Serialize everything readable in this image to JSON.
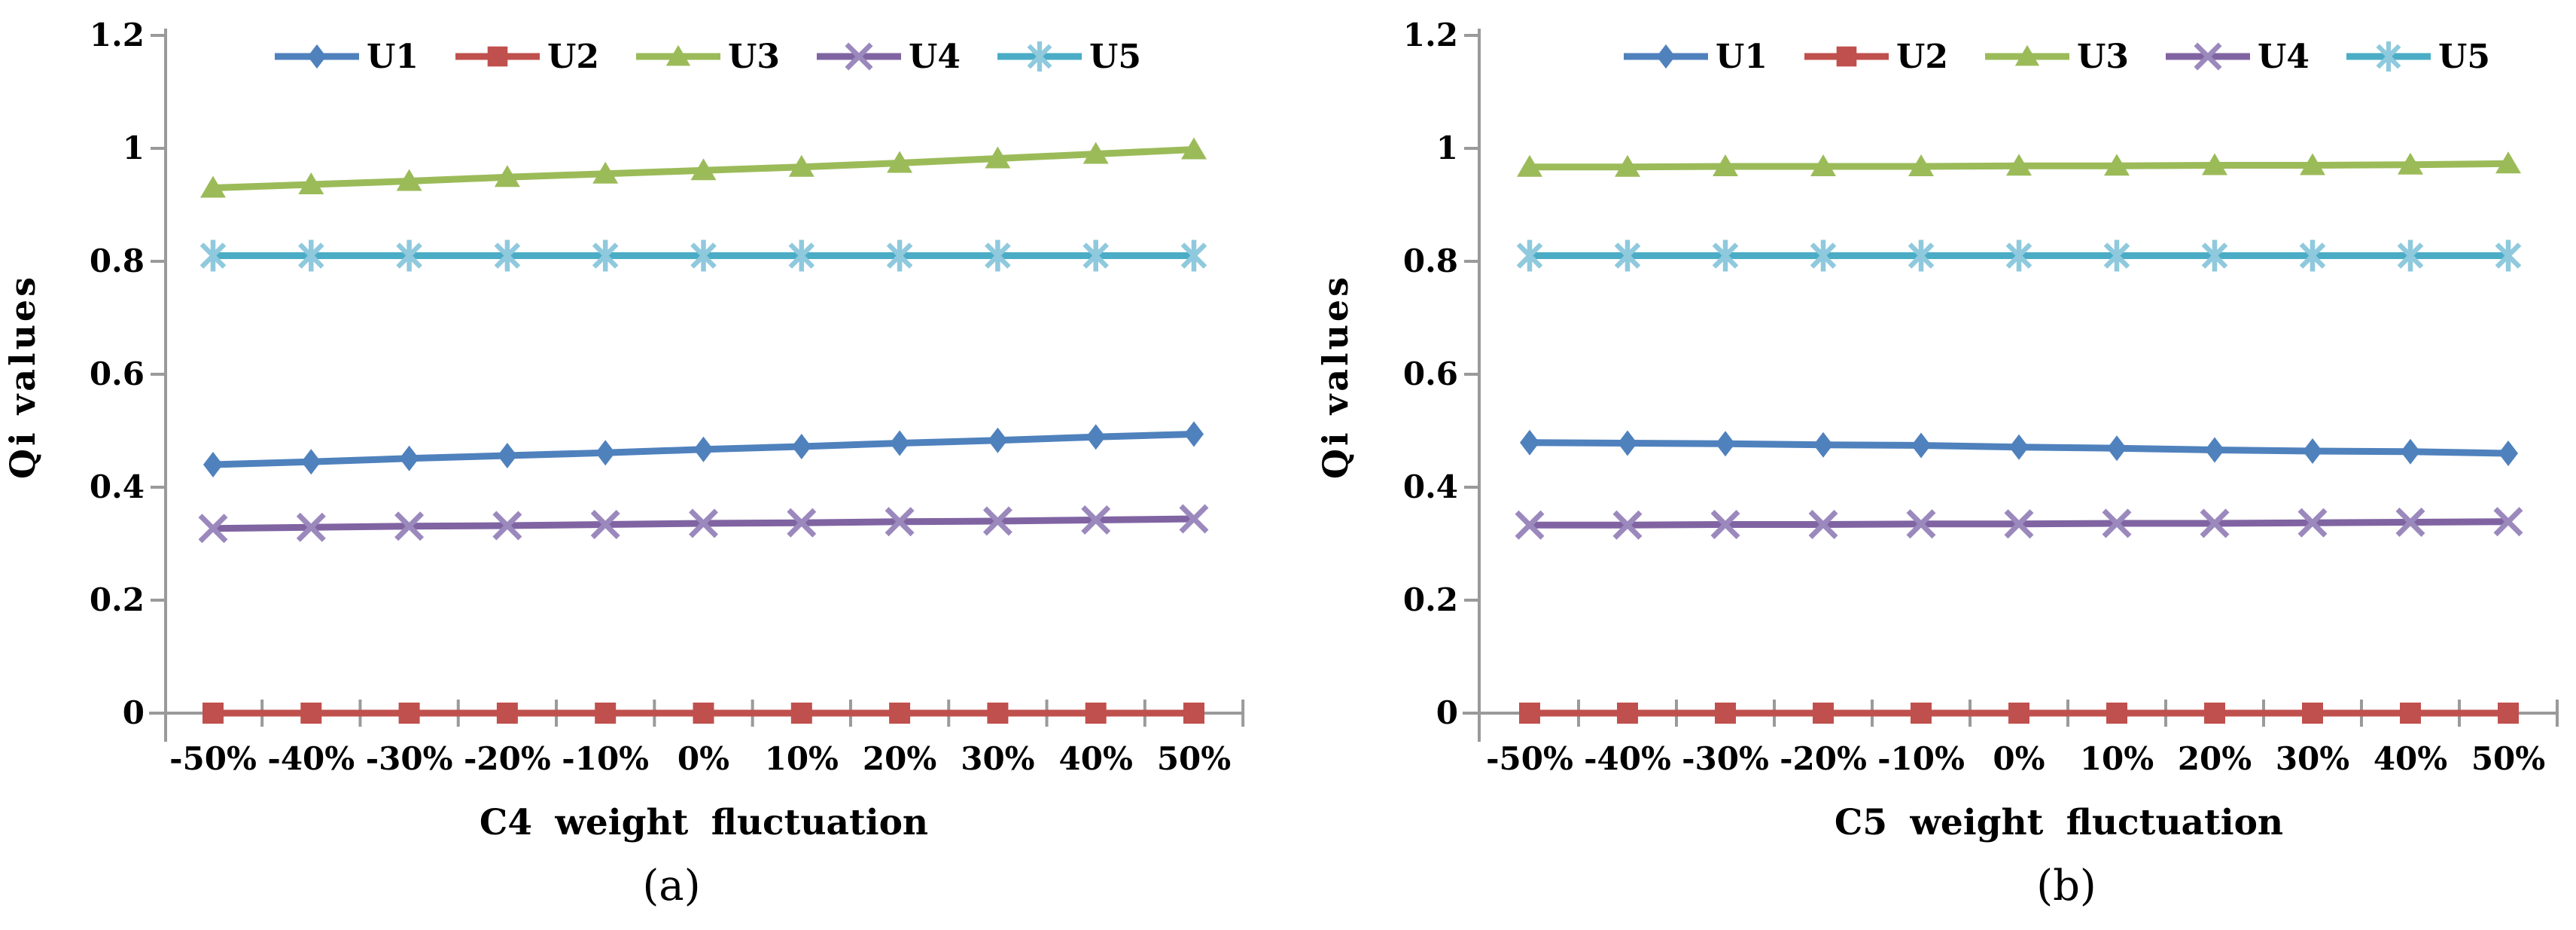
{
  "figure": {
    "background": "#ffffff",
    "axis_color": "#9a9a9a",
    "text_color": "#000000"
  },
  "legend": {
    "items": [
      {
        "label": "U1",
        "color": "#4f81bd",
        "marker": "diamond",
        "marker_color": "#4f81bd"
      },
      {
        "label": "U2",
        "color": "#c0504d",
        "marker": "square",
        "marker_color": "#c0504d"
      },
      {
        "label": "U3",
        "color": "#9bbb59",
        "marker": "triangle",
        "marker_color": "#9bbb59"
      },
      {
        "label": "U4",
        "color": "#8064a2",
        "marker": "x",
        "marker_color": "#9b89bd"
      },
      {
        "label": "U5",
        "color": "#4bacc6",
        "marker": "asterisk",
        "marker_color": "#8fc9dd"
      }
    ]
  },
  "chart_data": [
    {
      "type": "line",
      "caption": "(a)",
      "x_title": "C4 weight fluctuation",
      "y_title": "Qi values",
      "categories": [
        "-50%",
        "-40%",
        "-30%",
        "-20%",
        "-10%",
        "0%",
        "10%",
        "20%",
        "30%",
        "40%",
        "50%"
      ],
      "y_ticks": [
        "0",
        "0.2",
        "0.4",
        "0.6",
        "0.8",
        "1",
        "1.2"
      ],
      "ylim": [
        0,
        1.2
      ],
      "grid": false,
      "legend_position": "top",
      "series": [
        {
          "name": "U1",
          "color": "#4f81bd",
          "marker": "diamond",
          "marker_color": "#4f81bd",
          "values": [
            0.44,
            0.445,
            0.451,
            0.456,
            0.461,
            0.467,
            0.472,
            0.478,
            0.483,
            0.489,
            0.494
          ]
        },
        {
          "name": "U2",
          "color": "#c0504d",
          "marker": "square",
          "marker_color": "#c0504d",
          "values": [
            0,
            0,
            0,
            0,
            0,
            0,
            0,
            0,
            0,
            0,
            0
          ]
        },
        {
          "name": "U3",
          "color": "#9bbb59",
          "marker": "triangle",
          "marker_color": "#9bbb59",
          "values": [
            0.93,
            0.936,
            0.942,
            0.949,
            0.955,
            0.961,
            0.967,
            0.974,
            0.982,
            0.99,
            0.998
          ]
        },
        {
          "name": "U4",
          "color": "#8064a2",
          "marker": "x",
          "marker_color": "#9b89bd",
          "values": [
            0.327,
            0.329,
            0.331,
            0.332,
            0.334,
            0.336,
            0.337,
            0.339,
            0.34,
            0.342,
            0.344
          ]
        },
        {
          "name": "U5",
          "color": "#4bacc6",
          "marker": "asterisk",
          "marker_color": "#8fc9dd",
          "values": [
            0.81,
            0.81,
            0.81,
            0.81,
            0.81,
            0.81,
            0.81,
            0.81,
            0.81,
            0.81,
            0.81
          ]
        }
      ]
    },
    {
      "type": "line",
      "caption": "(b)",
      "x_title": "C5 weight fluctuation",
      "y_title": "Qi values",
      "categories": [
        "-50%",
        "-40%",
        "-30%",
        "-20%",
        "-10%",
        "0%",
        "10%",
        "20%",
        "30%",
        "40%",
        "50%"
      ],
      "y_ticks": [
        "0",
        "0.2",
        "0.4",
        "0.6",
        "0.8",
        "1",
        "1.2"
      ],
      "ylim": [
        0,
        1.2
      ],
      "grid": false,
      "legend_position": "top",
      "series": [
        {
          "name": "U1",
          "color": "#4f81bd",
          "marker": "diamond",
          "marker_color": "#4f81bd",
          "values": [
            0.479,
            0.478,
            0.477,
            0.475,
            0.474,
            0.471,
            0.469,
            0.466,
            0.464,
            0.463,
            0.46
          ]
        },
        {
          "name": "U2",
          "color": "#c0504d",
          "marker": "square",
          "marker_color": "#c0504d",
          "values": [
            0,
            0,
            0,
            0,
            0,
            0,
            0,
            0,
            0,
            0,
            0
          ]
        },
        {
          "name": "U3",
          "color": "#9bbb59",
          "marker": "triangle",
          "marker_color": "#9bbb59",
          "values": [
            0.967,
            0.967,
            0.968,
            0.968,
            0.968,
            0.969,
            0.969,
            0.97,
            0.97,
            0.971,
            0.973
          ]
        },
        {
          "name": "U4",
          "color": "#8064a2",
          "marker": "x",
          "marker_color": "#9b89bd",
          "values": [
            0.333,
            0.333,
            0.334,
            0.334,
            0.335,
            0.335,
            0.336,
            0.336,
            0.337,
            0.338,
            0.339
          ]
        },
        {
          "name": "U5",
          "color": "#4bacc6",
          "marker": "asterisk",
          "marker_color": "#8fc9dd",
          "values": [
            0.81,
            0.81,
            0.81,
            0.81,
            0.81,
            0.81,
            0.81,
            0.81,
            0.81,
            0.81,
            0.81
          ]
        }
      ]
    }
  ]
}
